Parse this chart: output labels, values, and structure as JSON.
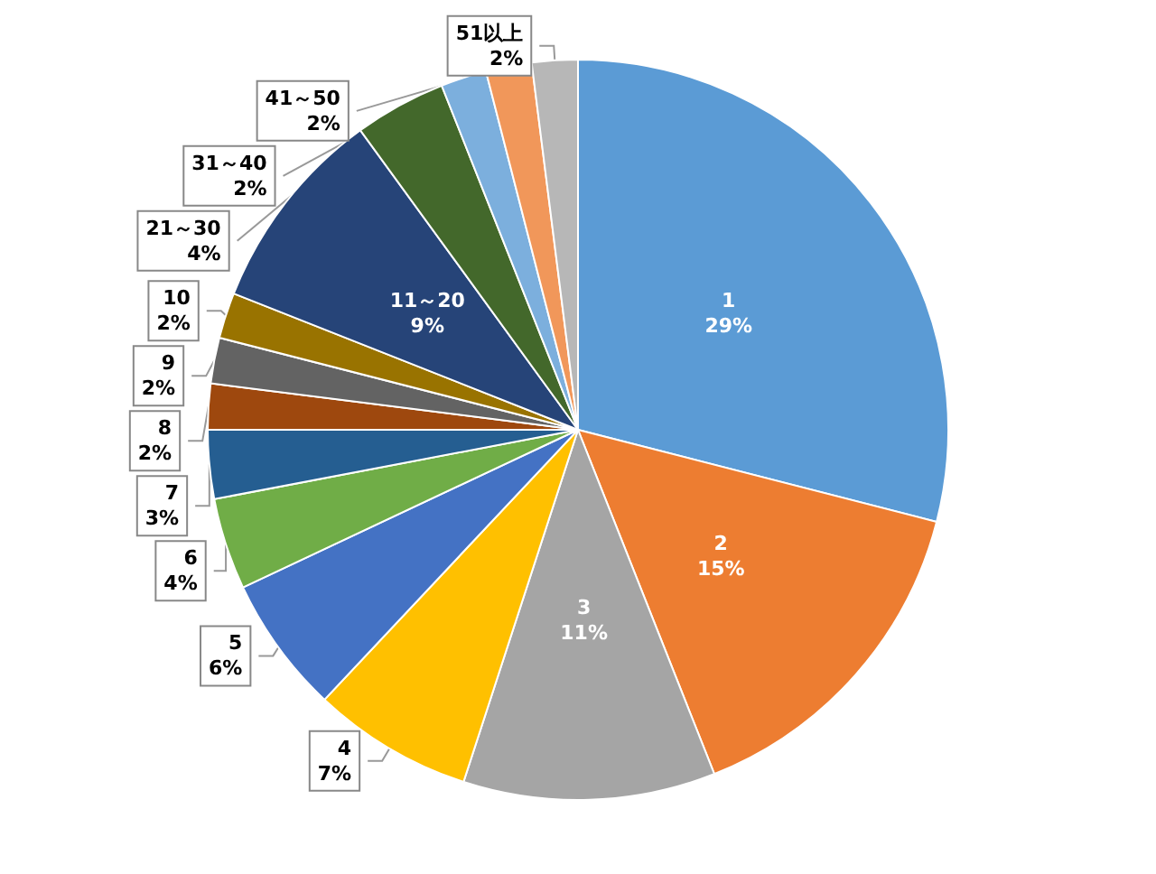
{
  "chart_data": {
    "type": "pie",
    "categories": [
      "1",
      "2",
      "3",
      "4",
      "5",
      "6",
      "7",
      "8",
      "9",
      "10",
      "11～20",
      "21～30",
      "31～40",
      "41～50",
      "51以上"
    ],
    "values": [
      29,
      15,
      11,
      7,
      6,
      4,
      3,
      2,
      2,
      2,
      9,
      4,
      2,
      2,
      2
    ],
    "value_labels": [
      "29%",
      "15%",
      "11%",
      "7%",
      "6%",
      "4%",
      "3%",
      "2%",
      "2%",
      "2%",
      "9%",
      "4%",
      "2%",
      "2%",
      "2%"
    ],
    "colors": [
      "#5b9bd5",
      "#ed7d31",
      "#a5a5a5",
      "#ffc000",
      "#4472c4",
      "#70ad47",
      "#255e91",
      "#9e480e",
      "#636363",
      "#997300",
      "#264478",
      "#43682b",
      "#7cafdd",
      "#f1975a",
      "#b7b7b7"
    ],
    "legend": false
  }
}
